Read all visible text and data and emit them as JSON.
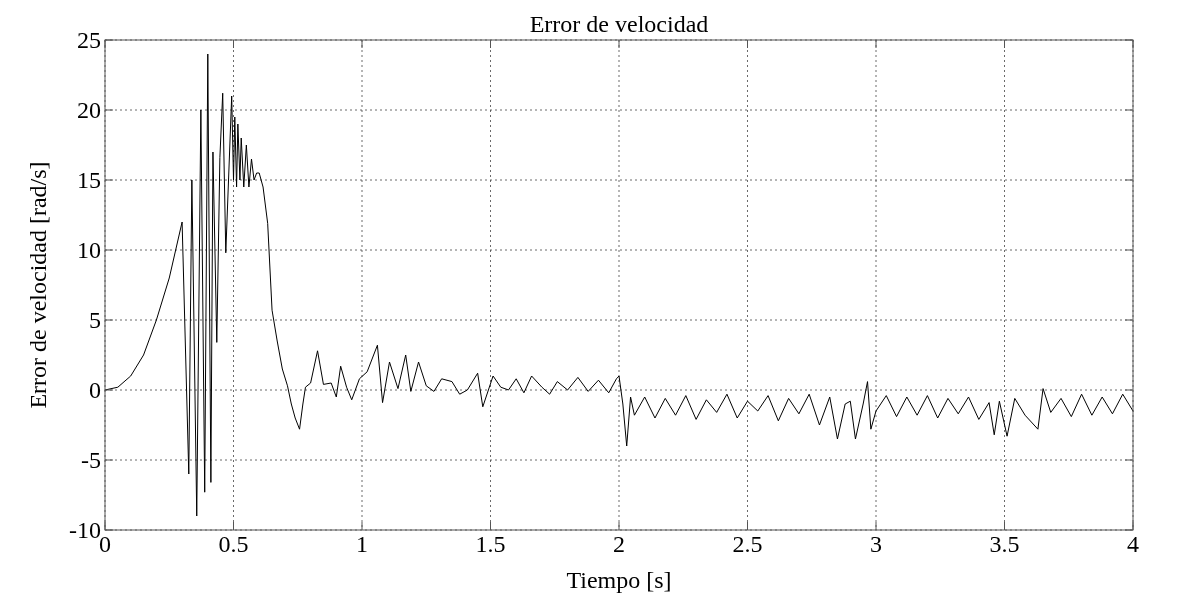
{
  "chart_data": {
    "type": "line",
    "title": "Error de velocidad",
    "xlabel": "Tiempo [s]",
    "ylabel": "Error de velocidad [rad/s]",
    "xlim": [
      0,
      4
    ],
    "xticks": [
      0,
      0.5,
      1,
      1.5,
      2,
      2.5,
      3,
      3.5,
      4
    ],
    "ylim": [
      -10,
      25
    ],
    "yticks": [
      -10,
      -5,
      0,
      5,
      10,
      15,
      20,
      25
    ],
    "grid": true,
    "line_style": "solid",
    "marker": "none",
    "series": [
      {
        "color": "#000000",
        "x": [
          0,
          0.05,
          0.1,
          0.15,
          0.2,
          0.25,
          0.3,
          0.326,
          0.338,
          0.357,
          0.373,
          0.388,
          0.4,
          0.412,
          0.42,
          0.435,
          0.447,
          0.458,
          0.47,
          0.493,
          0.5,
          0.505,
          0.512,
          0.517,
          0.525,
          0.53,
          0.54,
          0.55,
          0.56,
          0.57,
          0.58,
          0.59,
          0.6,
          0.615,
          0.633,
          0.65,
          0.67,
          0.69,
          0.71,
          0.725,
          0.74,
          0.757,
          0.77,
          0.78,
          0.8,
          0.827,
          0.85,
          0.88,
          0.9,
          0.917,
          0.94,
          0.96,
          0.99,
          1.02,
          1.06,
          1.08,
          1.107,
          1.14,
          1.17,
          1.19,
          1.22,
          1.25,
          1.28,
          1.31,
          1.35,
          1.38,
          1.41,
          1.45,
          1.47,
          1.51,
          1.54,
          1.57,
          1.6,
          1.63,
          1.66,
          1.7,
          1.73,
          1.76,
          1.8,
          1.84,
          1.88,
          1.92,
          1.96,
          1.99,
          2.0,
          2.015,
          2.03,
          2.045,
          2.06,
          2.1,
          2.14,
          2.18,
          2.22,
          2.26,
          2.3,
          2.34,
          2.38,
          2.42,
          2.46,
          2.5,
          2.54,
          2.58,
          2.62,
          2.66,
          2.7,
          2.74,
          2.78,
          2.82,
          2.85,
          2.88,
          2.9,
          2.92,
          2.95,
          2.967,
          2.98,
          3.0,
          3.04,
          3.08,
          3.12,
          3.16,
          3.2,
          3.24,
          3.28,
          3.32,
          3.36,
          3.4,
          3.44,
          3.46,
          3.48,
          3.51,
          3.54,
          3.58,
          3.63,
          3.65,
          3.68,
          3.72,
          3.76,
          3.8,
          3.84,
          3.88,
          3.92,
          3.96,
          4.0
        ],
        "values": [
          0,
          0.2,
          1,
          2.5,
          5,
          8,
          12,
          -6,
          15,
          -9,
          20,
          -7.3,
          24,
          -6.6,
          17,
          3.4,
          16.6,
          21.2,
          9.8,
          21,
          15,
          19.5,
          14.5,
          19,
          15,
          18,
          14.5,
          17.5,
          14.5,
          16.5,
          15,
          15.5,
          15.5,
          14.5,
          11.9,
          5.7,
          3.5,
          1.5,
          0.3,
          -1,
          -2,
          -2.8,
          -1,
          0.2,
          0.5,
          2.8,
          0.4,
          0.5,
          -0.5,
          1.7,
          0.2,
          -0.7,
          0.8,
          1.3,
          3.2,
          -0.9,
          2,
          0.1,
          2.5,
          -0.1,
          2,
          0.3,
          -0.1,
          0.8,
          0.6,
          -0.3,
          0,
          1.2,
          -1.2,
          1,
          0.2,
          0,
          0.8,
          -0.2,
          1,
          0.2,
          -0.3,
          0.6,
          0,
          0.9,
          -0.1,
          0.7,
          -0.2,
          0.8,
          1,
          -1,
          -4,
          -0.5,
          -1.8,
          -0.5,
          -2,
          -0.6,
          -1.8,
          -0.4,
          -2.1,
          -0.7,
          -1.6,
          -0.3,
          -2,
          -0.8,
          -1.5,
          -0.4,
          -2.2,
          -0.6,
          -1.7,
          -0.3,
          -2.5,
          -0.5,
          -3.5,
          -1,
          -0.8,
          -3.5,
          -1,
          0.6,
          -2.8,
          -1.5,
          -0.4,
          -1.9,
          -0.5,
          -1.8,
          -0.4,
          -2,
          -0.6,
          -1.7,
          -0.5,
          -2.1,
          -0.9,
          -3.2,
          -0.8,
          -3.3,
          -0.6,
          -1.8,
          -2.8,
          0.1,
          -1.6,
          -0.6,
          -1.9,
          -0.3,
          -1.8,
          -0.5,
          -1.7,
          -0.3,
          -1.5
        ]
      }
    ]
  }
}
